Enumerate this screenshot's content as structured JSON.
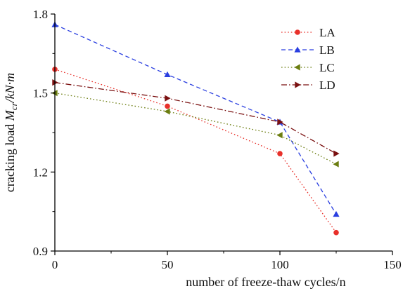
{
  "chart_data": {
    "type": "line",
    "xlabel": "number of freeze-thaw cycles/n",
    "ylabel": "cracking load Mcr/kN·m",
    "ylabel_parts": {
      "pre": "cracking load ",
      "symbol": "M",
      "sub": "cr",
      "post": "/kN·m"
    },
    "xlim": [
      0,
      150
    ],
    "ylim": [
      0.9,
      1.8
    ],
    "x_ticks": [
      0,
      50,
      100,
      150
    ],
    "y_ticks": [
      0.9,
      1.2,
      1.5,
      1.8
    ],
    "x_tick_labels": [
      "0",
      "50",
      "100",
      "150"
    ],
    "y_tick_labels": [
      "0.9",
      "1.2",
      "1.5",
      "1.8"
    ],
    "grid": false,
    "legend_position": "top-right",
    "series": [
      {
        "name": "LA",
        "color": "#e8302a",
        "marker": "circle",
        "dash": "dotted",
        "x": [
          0,
          50,
          100,
          125
        ],
        "values": [
          1.59,
          1.45,
          1.27,
          0.97
        ]
      },
      {
        "name": "LB",
        "color": "#2a3fe0",
        "marker": "triangle-up",
        "dash": "dashed",
        "x": [
          0,
          50,
          100,
          125
        ],
        "values": [
          1.76,
          1.57,
          1.39,
          1.04
        ]
      },
      {
        "name": "LC",
        "color": "#6b7d10",
        "marker": "triangle-left",
        "dash": "dotted",
        "x": [
          0,
          50,
          100,
          125
        ],
        "values": [
          1.5,
          1.43,
          1.34,
          1.23
        ]
      },
      {
        "name": "LD",
        "color": "#7a1010",
        "marker": "triangle-right",
        "dash": "dashdot",
        "x": [
          0,
          50,
          100,
          125
        ],
        "values": [
          1.54,
          1.48,
          1.39,
          1.27
        ]
      }
    ]
  }
}
